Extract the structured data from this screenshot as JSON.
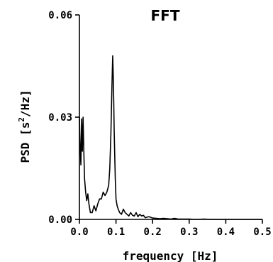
{
  "chart_data": {
    "type": "line",
    "title": "FFT",
    "xlabel": "frequency [Hz]",
    "ylabel_prefix": "PSD [s",
    "ylabel_sup": "2",
    "ylabel_suffix": "/Hz]",
    "xlim": [
      0,
      0.5
    ],
    "ylim": [
      0,
      0.06
    ],
    "x_ticks": [
      0.0,
      0.1,
      0.2,
      0.3,
      0.4,
      0.5
    ],
    "x_tick_labels": [
      "0.0",
      "0.1",
      "0.2",
      "0.3",
      "0.4",
      "0.5"
    ],
    "y_ticks": [
      0.0,
      0.03,
      0.06
    ],
    "y_tick_labels": [
      "0.00",
      "0.03",
      "0.06"
    ],
    "grid": false,
    "series": [
      {
        "x": [
          0.0,
          0.002,
          0.004,
          0.006,
          0.008,
          0.01,
          0.012,
          0.014,
          0.017,
          0.02,
          0.023,
          0.026,
          0.03,
          0.035,
          0.04,
          0.045,
          0.05,
          0.055,
          0.06,
          0.065,
          0.07,
          0.075,
          0.08,
          0.083,
          0.086,
          0.088,
          0.09,
          0.091,
          0.093,
          0.095,
          0.098,
          0.1,
          0.103,
          0.106,
          0.11,
          0.115,
          0.12,
          0.125,
          0.13,
          0.135,
          0.14,
          0.145,
          0.15,
          0.155,
          0.16,
          0.165,
          0.17,
          0.175,
          0.18,
          0.19,
          0.2,
          0.21,
          0.22,
          0.23,
          0.24,
          0.25,
          0.26,
          0.27,
          0.28,
          0.3,
          0.32,
          0.34,
          0.36,
          0.38,
          0.4,
          0.42,
          0.44,
          0.46,
          0.48,
          0.5
        ],
        "y": [
          0.03,
          0.021,
          0.016,
          0.0295,
          0.02,
          0.03,
          0.02,
          0.012,
          0.008,
          0.0055,
          0.0075,
          0.0045,
          0.002,
          0.002,
          0.004,
          0.0025,
          0.0045,
          0.006,
          0.006,
          0.008,
          0.007,
          0.008,
          0.01,
          0.015,
          0.025,
          0.035,
          0.044,
          0.048,
          0.04,
          0.026,
          0.012,
          0.006,
          0.004,
          0.003,
          0.002,
          0.0015,
          0.003,
          0.002,
          0.0015,
          0.001,
          0.002,
          0.0012,
          0.001,
          0.002,
          0.0008,
          0.0015,
          0.001,
          0.0012,
          0.0005,
          0.0008,
          0.0004,
          0.0003,
          0.0002,
          0.0003,
          0.0002,
          0.0001,
          0.0003,
          0.0001,
          0.0001,
          0.0001,
          0.0,
          0.0001,
          0.0,
          0.0,
          0.0,
          0.0,
          0.0,
          0.0,
          0.0,
          0.0
        ]
      }
    ]
  }
}
